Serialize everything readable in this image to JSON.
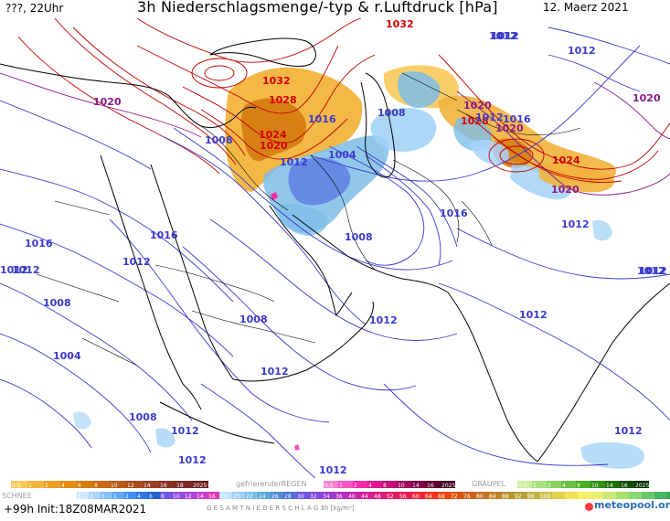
{
  "header": {
    "left": "???, 22Uhr",
    "title": "3h Niederschlagsmenge/-typ & r.Luftdruck [hPa]",
    "date": "12. Maerz 2021"
  },
  "legend": {
    "schnee_label": "SCHNEE",
    "gefrierender_label": "gefrierenderREGEN",
    "graupel_label": "GRAUPEL",
    "gesamt_label": "G E S A M T N I E D E R S C H L A G   3h   [kg/m²]",
    "rain_steps": [
      "0.5",
      "1",
      "2",
      "4",
      "6",
      "8",
      "10",
      "12",
      "14",
      "16",
      "18",
      "2025+"
    ],
    "frz_steps": [
      "0.5",
      "1",
      "2",
      "4",
      "8",
      "10",
      "14",
      "16",
      "2025+"
    ],
    "graupel_steps": [
      "0.5",
      "1",
      "2",
      "4",
      "8",
      "10",
      "14",
      "16",
      "2025+"
    ],
    "snow_steps": [
      "1",
      "2",
      "5",
      "1",
      "2",
      "4",
      "6",
      "8",
      "10",
      "12",
      "14",
      "16",
      "18",
      "20",
      "22",
      "24",
      "26",
      "28",
      "30",
      "32",
      "34",
      "36",
      "40",
      "44",
      "48",
      "52",
      "56",
      "60",
      "64",
      "68",
      "72",
      "76",
      "80",
      "84",
      "88",
      "92",
      "96",
      "100"
    ],
    "init_text": "+99h  Init:18Z08MAR2021",
    "logo_text": "meteopool.org"
  },
  "isobars": [
    {
      "label": "1032",
      "color": "#d40000"
    },
    {
      "label": "1032",
      "color": "#d40000"
    },
    {
      "label": "1028",
      "color": "#d40000"
    },
    {
      "label": "1024",
      "color": "#d40000"
    },
    {
      "label": "1020",
      "color": "#d40000"
    },
    {
      "label": "1016",
      "color": "#3a3acc"
    },
    {
      "label": "1012",
      "color": "#3a3acc"
    },
    {
      "label": "1008",
      "color": "#3a3acc"
    },
    {
      "label": "1004",
      "color": "#3a3acc"
    },
    {
      "label": "1012",
      "color": "#3a3acc"
    },
    {
      "label": "1020",
      "color": "#8a1a8a"
    },
    {
      "label": "1008",
      "color": "#3a3acc"
    },
    {
      "label": "1028",
      "color": "#d40000"
    },
    {
      "label": "1020",
      "color": "#8a1a8a"
    },
    {
      "label": "1016",
      "color": "#3a3acc"
    },
    {
      "label": "1024",
      "color": "#d40000"
    },
    {
      "label": "1020",
      "color": "#8a1a8a"
    },
    {
      "label": "1012",
      "color": "#3a3acc"
    },
    {
      "label": "1012",
      "color": "#3a3acc"
    },
    {
      "label": "1020",
      "color": "#8a1a8a"
    },
    {
      "label": "1012",
      "color": "#3a3acc"
    },
    {
      "label": "1020",
      "color": "#8a1a8a"
    },
    {
      "label": "1016",
      "color": "#3a3acc"
    },
    {
      "label": "1012",
      "color": "#3a3acc"
    },
    {
      "label": "1016",
      "color": "#3a3acc"
    },
    {
      "label": "1012",
      "color": "#3a3acc"
    },
    {
      "label": "1008",
      "color": "#3a3acc"
    },
    {
      "label": "1008",
      "color": "#3a3acc"
    },
    {
      "label": "1004",
      "color": "#3a3acc"
    },
    {
      "label": "1012",
      "color": "#3a3acc"
    },
    {
      "label": "1012",
      "color": "#3a3acc"
    },
    {
      "label": "1016",
      "color": "#3a3acc"
    },
    {
      "label": "1008",
      "color": "#3a3acc"
    },
    {
      "label": "1012",
      "color": "#3a3acc"
    },
    {
      "label": "1012",
      "color": "#3a3acc"
    },
    {
      "label": "1012",
      "color": "#3a3acc"
    },
    {
      "label": "1008",
      "color": "#3a3acc"
    },
    {
      "label": "1012",
      "color": "#3a3acc"
    },
    {
      "label": "1012",
      "color": "#3a3acc"
    },
    {
      "label": "1012",
      "color": "#3a3acc"
    },
    {
      "label": "1012",
      "color": "#3a3acc"
    },
    {
      "label": "1012",
      "color": "#3a3acc"
    },
    {
      "label": "1012",
      "color": "#3a3acc"
    }
  ],
  "colors": {
    "rain": [
      "#f7c95a",
      "#f2b43c",
      "#eaa022",
      "#e08c10",
      "#d47b10",
      "#c86a14",
      "#b85a18",
      "#a84c1c",
      "#984020",
      "#883424",
      "#782a28",
      "#6a2020"
    ],
    "snow": [
      "#cfe8ff",
      "#a9d4ff",
      "#83beff",
      "#5da7ff",
      "#3b8fff",
      "#2c78e6",
      "#2462cc",
      "#6b5ae6",
      "#8a4ee0",
      "#a944d6",
      "#c83ccb",
      "#e038b8"
    ],
    "frz": [
      "#ff7fd0",
      "#ff55c0",
      "#ff2aa8",
      "#e01890",
      "#c01078",
      "#a00860",
      "#800048",
      "#600030",
      "#400020"
    ],
    "graupel": [
      "#c8f0a0",
      "#a8e080",
      "#88d060",
      "#68c040",
      "#48b020",
      "#309010",
      "#207008",
      "#105004",
      "#003000"
    ],
    "total": [
      "#bfe3ff",
      "#9dd0f5",
      "#7dbde8",
      "#5da8da",
      "#4d8fd0",
      "#5070d8",
      "#6a58e0",
      "#8248e0",
      "#9a3ad8",
      "#b030c8",
      "#c428b0",
      "#d62098",
      "#e01880",
      "#e81868",
      "#f01850",
      "#f82038",
      "#f83020",
      "#f04010",
      "#e05010",
      "#d06018",
      "#c87020",
      "#c08028",
      "#b89030",
      "#b8a038",
      "#c0b040",
      "#d0c048",
      "#e0d050",
      "#f0e058",
      "#f8f060",
      "#e8f070",
      "#c8e870",
      "#a8e070",
      "#88d870",
      "#68c868",
      "#48b860",
      "#30a858"
    ]
  }
}
